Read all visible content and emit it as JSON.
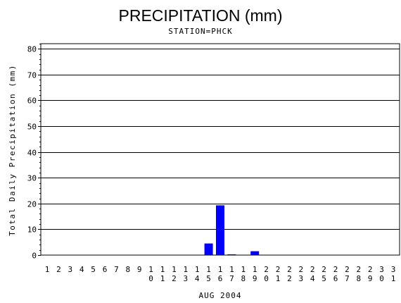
{
  "chart_data": {
    "type": "bar",
    "title": "PRECIPITATION (mm)",
    "subtitle": "STATION=PHCK",
    "xlabel": "AUG 2004",
    "ylabel": "Total Daily Precipitation (mm)",
    "ylim": [
      0,
      82
    ],
    "yticks": [
      0,
      10,
      20,
      30,
      40,
      50,
      60,
      70,
      80
    ],
    "grid": true,
    "bar_color": "#0000ff",
    "categories": [
      "1",
      "2",
      "3",
      "4",
      "5",
      "6",
      "7",
      "8",
      "9",
      "10",
      "11",
      "12",
      "13",
      "14",
      "15",
      "16",
      "17",
      "18",
      "19",
      "20",
      "21",
      "22",
      "23",
      "24",
      "25",
      "26",
      "27",
      "28",
      "29",
      "30",
      "31"
    ],
    "values": [
      0,
      0,
      0,
      0,
      0,
      0,
      0,
      0,
      0,
      0,
      0,
      0,
      0,
      0,
      4.5,
      19.3,
      0.3,
      0,
      1.5,
      0,
      0,
      0,
      0,
      0,
      0,
      0,
      0,
      0,
      0,
      0,
      0
    ]
  }
}
